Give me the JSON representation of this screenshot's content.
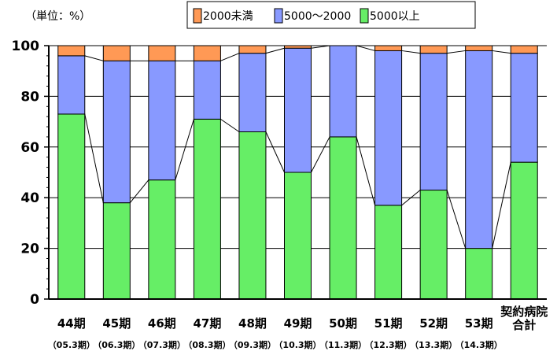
{
  "chart_data": {
    "type": "bar",
    "stacked": true,
    "percent": true,
    "unit_label": "（単位：%）",
    "categories": [
      "44期",
      "45期",
      "46期",
      "47期",
      "48期",
      "49期",
      "50期",
      "51期",
      "52期",
      "53期",
      "契約病院合計"
    ],
    "category_lines": [
      [
        "44期"
      ],
      [
        "45期"
      ],
      [
        "46期"
      ],
      [
        "47期"
      ],
      [
        "48期"
      ],
      [
        "49期"
      ],
      [
        "50期"
      ],
      [
        "51期"
      ],
      [
        "52期"
      ],
      [
        "53期"
      ],
      [
        "契約病院",
        "合計"
      ]
    ],
    "sublabels": [
      "（05.3期）",
      "（06.3期）",
      "（07.3期）",
      "（08.3期）",
      "（09.3期）",
      "（10.3期）",
      "（11.3期）",
      "（12.3期）",
      "（13.3期）",
      "（14.3期）",
      ""
    ],
    "series": [
      {
        "name": "5000以上",
        "color": "#66ee66",
        "values": [
          73,
          38,
          47,
          71,
          66,
          50,
          64,
          37,
          43,
          20,
          54
        ]
      },
      {
        "name": "5000～2000",
        "color": "#8899ff",
        "values": [
          23,
          56,
          47,
          23,
          31,
          49,
          36,
          61,
          54,
          78,
          43
        ]
      },
      {
        "name": "2000未満",
        "color": "#ff9955",
        "values": [
          4,
          6,
          6,
          6,
          3,
          1,
          0,
          2,
          3,
          2,
          3
        ]
      }
    ],
    "legend_order": [
      "2000未満",
      "5000～2000",
      "5000以上"
    ],
    "ylim": [
      0,
      100
    ],
    "yticks": [
      0,
      20,
      40,
      60,
      80,
      100
    ],
    "grid": true,
    "legend_position": "top-center"
  }
}
